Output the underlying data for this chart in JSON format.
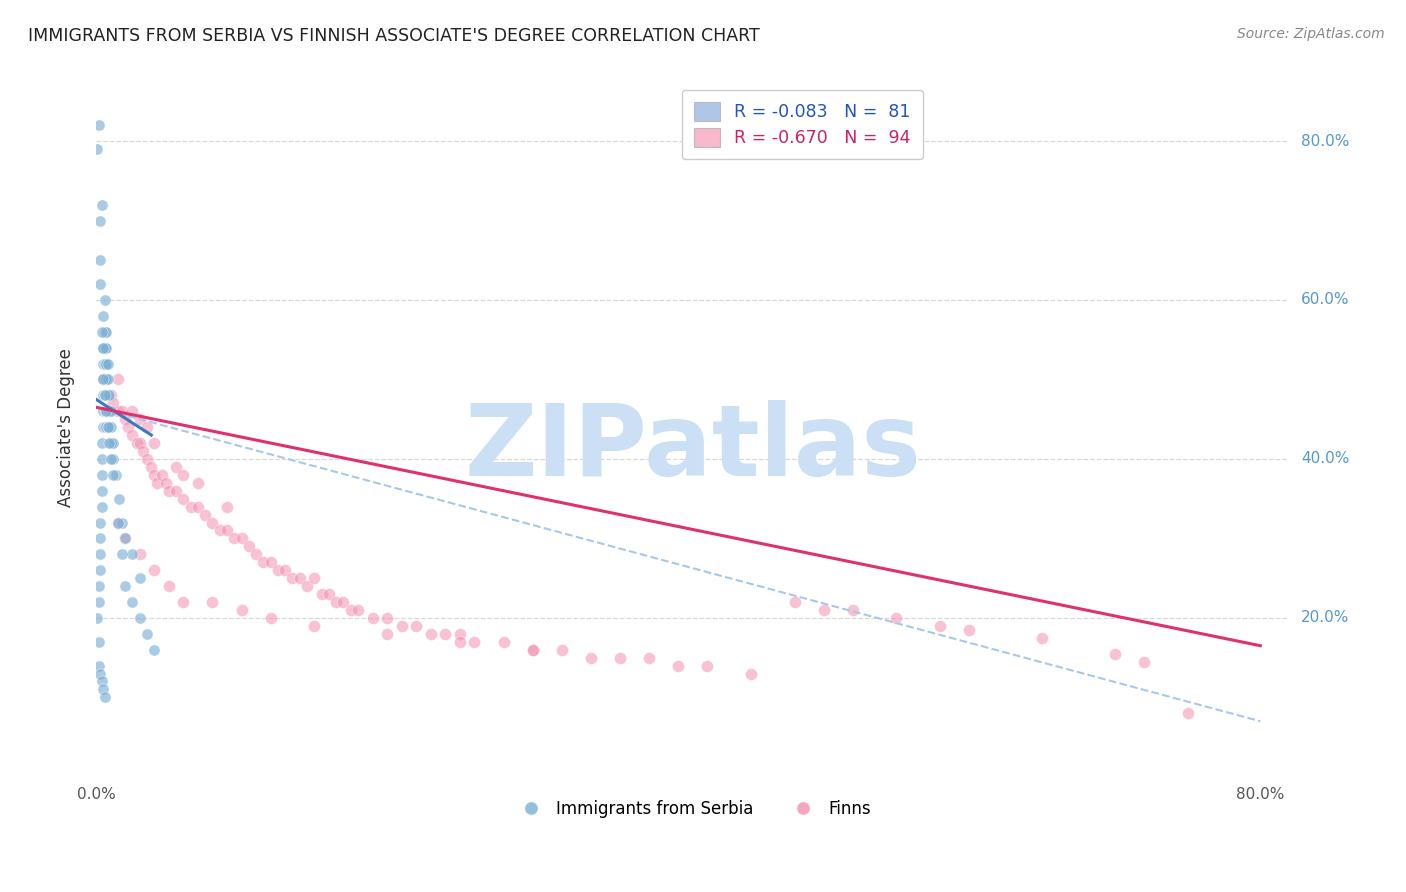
{
  "title": "IMMIGRANTS FROM SERBIA VS FINNISH ASSOCIATE'S DEGREE CORRELATION CHART",
  "source": "Source: ZipAtlas.com",
  "ylabel": "Associate's Degree",
  "right_yticks": [
    "80.0%",
    "60.0%",
    "40.0%",
    "20.0%"
  ],
  "right_ytick_vals": [
    0.8,
    0.6,
    0.4,
    0.2
  ],
  "xlim": [
    0.0,
    0.82
  ],
  "ylim": [
    0.0,
    0.88
  ],
  "legend_r1": "R = -0.083   N =  81",
  "legend_r2": "R = -0.670   N =  94",
  "legend_color1": "#aec6e8",
  "legend_color2": "#f9b8cb",
  "scatter_color_blue": "#7bafd4",
  "scatter_color_pink": "#f48fb1",
  "trendline_color_blue": "#3a7abf",
  "trendline_color_pink": "#e03070",
  "trendline_dash_color": "#a8c8e8",
  "watermark_text": "ZIPatlas",
  "watermark_color": "#cce0f5",
  "grid_color": "#d8d8d8",
  "blue_scatter_x": [
    0.001,
    0.002,
    0.002,
    0.002,
    0.003,
    0.003,
    0.003,
    0.003,
    0.003,
    0.004,
    0.004,
    0.004,
    0.004,
    0.004,
    0.004,
    0.005,
    0.005,
    0.005,
    0.005,
    0.005,
    0.005,
    0.005,
    0.006,
    0.006,
    0.006,
    0.006,
    0.006,
    0.006,
    0.006,
    0.006,
    0.007,
    0.007,
    0.007,
    0.007,
    0.007,
    0.007,
    0.007,
    0.008,
    0.008,
    0.008,
    0.008,
    0.008,
    0.009,
    0.009,
    0.009,
    0.01,
    0.01,
    0.01,
    0.012,
    0.012,
    0.014,
    0.016,
    0.018,
    0.02,
    0.025,
    0.03,
    0.001,
    0.002,
    0.003,
    0.003,
    0.004,
    0.005,
    0.005,
    0.006,
    0.007,
    0.008,
    0.009,
    0.01,
    0.012,
    0.015,
    0.018,
    0.02,
    0.025,
    0.03,
    0.035,
    0.04,
    0.002,
    0.003,
    0.004,
    0.005,
    0.006
  ],
  "blue_scatter_y": [
    0.2,
    0.22,
    0.24,
    0.17,
    0.26,
    0.28,
    0.3,
    0.32,
    0.65,
    0.34,
    0.36,
    0.38,
    0.4,
    0.42,
    0.72,
    0.44,
    0.46,
    0.48,
    0.5,
    0.52,
    0.54,
    0.58,
    0.44,
    0.46,
    0.48,
    0.5,
    0.52,
    0.54,
    0.56,
    0.6,
    0.44,
    0.46,
    0.48,
    0.5,
    0.52,
    0.54,
    0.56,
    0.44,
    0.46,
    0.48,
    0.5,
    0.52,
    0.44,
    0.46,
    0.48,
    0.42,
    0.44,
    0.46,
    0.4,
    0.42,
    0.38,
    0.35,
    0.32,
    0.3,
    0.28,
    0.25,
    0.79,
    0.82,
    0.7,
    0.62,
    0.56,
    0.54,
    0.5,
    0.48,
    0.46,
    0.44,
    0.42,
    0.4,
    0.38,
    0.32,
    0.28,
    0.24,
    0.22,
    0.2,
    0.18,
    0.16,
    0.14,
    0.13,
    0.12,
    0.11,
    0.1
  ],
  "pink_scatter_x": [
    0.005,
    0.008,
    0.01,
    0.012,
    0.015,
    0.015,
    0.018,
    0.02,
    0.022,
    0.025,
    0.025,
    0.028,
    0.03,
    0.03,
    0.032,
    0.035,
    0.035,
    0.038,
    0.04,
    0.04,
    0.042,
    0.045,
    0.048,
    0.05,
    0.055,
    0.055,
    0.06,
    0.06,
    0.065,
    0.07,
    0.07,
    0.075,
    0.08,
    0.085,
    0.09,
    0.09,
    0.095,
    0.1,
    0.105,
    0.11,
    0.115,
    0.12,
    0.125,
    0.13,
    0.135,
    0.14,
    0.145,
    0.15,
    0.155,
    0.16,
    0.165,
    0.17,
    0.175,
    0.18,
    0.19,
    0.2,
    0.21,
    0.22,
    0.23,
    0.24,
    0.25,
    0.26,
    0.28,
    0.3,
    0.32,
    0.34,
    0.36,
    0.38,
    0.4,
    0.42,
    0.45,
    0.48,
    0.5,
    0.52,
    0.55,
    0.58,
    0.6,
    0.65,
    0.7,
    0.72,
    0.75,
    0.015,
    0.02,
    0.03,
    0.04,
    0.05,
    0.06,
    0.08,
    0.1,
    0.12,
    0.15,
    0.2,
    0.25,
    0.3
  ],
  "pink_scatter_y": [
    0.5,
    0.46,
    0.48,
    0.47,
    0.46,
    0.5,
    0.46,
    0.45,
    0.44,
    0.46,
    0.43,
    0.42,
    0.42,
    0.45,
    0.41,
    0.44,
    0.4,
    0.39,
    0.42,
    0.38,
    0.37,
    0.38,
    0.37,
    0.36,
    0.36,
    0.39,
    0.35,
    0.38,
    0.34,
    0.34,
    0.37,
    0.33,
    0.32,
    0.31,
    0.31,
    0.34,
    0.3,
    0.3,
    0.29,
    0.28,
    0.27,
    0.27,
    0.26,
    0.26,
    0.25,
    0.25,
    0.24,
    0.25,
    0.23,
    0.23,
    0.22,
    0.22,
    0.21,
    0.21,
    0.2,
    0.2,
    0.19,
    0.19,
    0.18,
    0.18,
    0.18,
    0.17,
    0.17,
    0.16,
    0.16,
    0.15,
    0.15,
    0.15,
    0.14,
    0.14,
    0.13,
    0.22,
    0.21,
    0.21,
    0.2,
    0.19,
    0.185,
    0.175,
    0.155,
    0.145,
    0.08,
    0.32,
    0.3,
    0.28,
    0.26,
    0.24,
    0.22,
    0.22,
    0.21,
    0.2,
    0.19,
    0.18,
    0.17,
    0.16
  ],
  "blue_trend_x": [
    0.0,
    0.038
  ],
  "blue_trend_y": [
    0.475,
    0.43
  ],
  "pink_trend_x": [
    0.0,
    0.8
  ],
  "pink_trend_y": [
    0.465,
    0.165
  ],
  "blue_dash_trend_x": [
    0.0,
    0.8
  ],
  "blue_dash_trend_y": [
    0.465,
    0.07
  ]
}
